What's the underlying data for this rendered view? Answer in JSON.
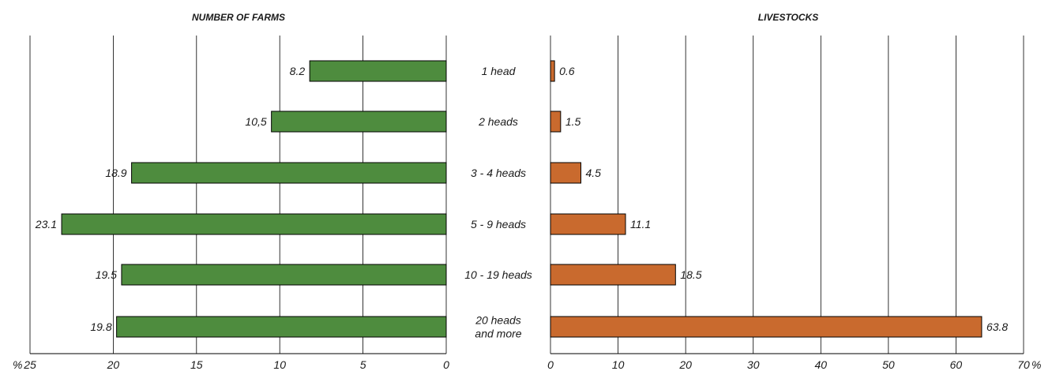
{
  "chart_data": [
    {
      "type": "bar",
      "orientation": "horizontal",
      "direction": "right-to-left",
      "title": "NUMBER  OF  FARMS",
      "unit": "%",
      "categories": [
        "1 head",
        "2 heads",
        "3 - 4 heads",
        "5 - 9 heads",
        "10 - 19 heads",
        "20 heads and more"
      ],
      "category_lines": [
        [
          "1 head"
        ],
        [
          "2 heads"
        ],
        [
          "3 - 4 heads"
        ],
        [
          "5 - 9 heads"
        ],
        [
          "10 - 19 heads"
        ],
        [
          "20 heads",
          "and more"
        ]
      ],
      "values": [
        8.2,
        10.5,
        18.9,
        23.1,
        19.5,
        19.8
      ],
      "value_labels": [
        "8.2",
        "10,5",
        "18.9",
        "23.1",
        "19.5",
        "19.8"
      ],
      "xlim": [
        0,
        25
      ],
      "ticks": [
        25,
        20,
        15,
        10,
        5,
        0
      ],
      "grid": true,
      "color": "#4e8c3e"
    },
    {
      "type": "bar",
      "orientation": "horizontal",
      "direction": "left-to-right",
      "title": "LIVESTOCKS",
      "unit": "%",
      "categories": [
        "1 head",
        "2 heads",
        "3 - 4 heads",
        "5 - 9 heads",
        "10 - 19 heads",
        "20 heads and more"
      ],
      "values": [
        0.6,
        1.5,
        4.5,
        11.1,
        18.5,
        63.8
      ],
      "value_labels": [
        "0.6",
        "1.5",
        "4.5",
        "11.1",
        "18.5",
        "63.8"
      ],
      "xlim": [
        0,
        70
      ],
      "ticks": [
        0,
        10,
        20,
        30,
        40,
        50,
        60,
        70
      ],
      "grid": true,
      "color": "#c96a2e"
    }
  ]
}
